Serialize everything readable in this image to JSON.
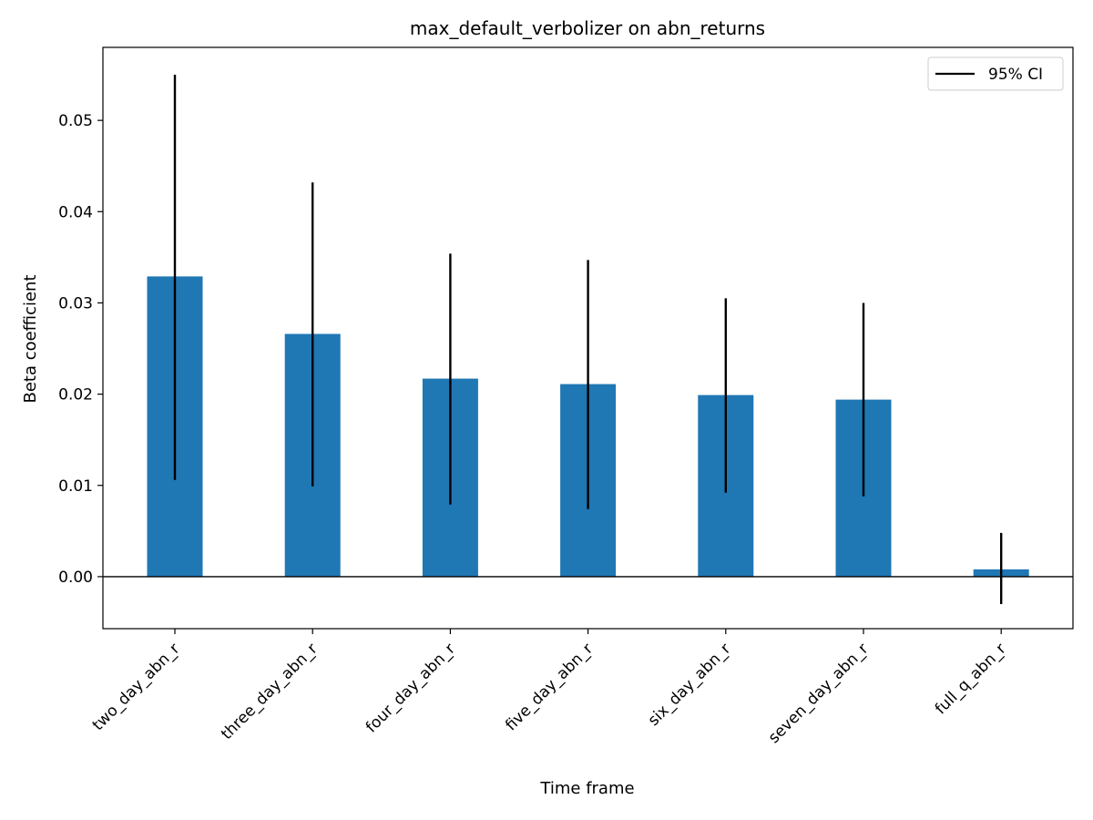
{
  "chart_data": {
    "type": "bar",
    "title": "max_default_verbolizer on abn_returns",
    "xlabel": "Time frame",
    "ylabel": "Beta coefficient",
    "categories": [
      "two_day_abn_r",
      "three_day_abn_r",
      "four_day_abn_r",
      "five_day_abn_r",
      "six_day_abn_r",
      "seven_day_abn_r",
      "full_q_abn_r"
    ],
    "values": [
      0.0329,
      0.0266,
      0.0217,
      0.0211,
      0.0199,
      0.0194,
      0.0008
    ],
    "ci_low": [
      0.0106,
      0.0099,
      0.0079,
      0.0074,
      0.0092,
      0.0088,
      -0.003
    ],
    "ci_high": [
      0.055,
      0.0432,
      0.0354,
      0.0347,
      0.0305,
      0.03,
      0.0048
    ],
    "ylim": [
      -0.0057,
      0.058
    ],
    "yticks": [
      0.0,
      0.01,
      0.02,
      0.03,
      0.04,
      0.05
    ],
    "ytick_labels": [
      "0.00",
      "0.01",
      "0.02",
      "0.03",
      "0.04",
      "0.05"
    ],
    "legend": {
      "label": "95% CI",
      "position": "top-right"
    },
    "grid": false,
    "zero_line": true,
    "colors": {
      "bar": "#1f77b4",
      "error": "#000000",
      "axis": "#000000"
    }
  }
}
